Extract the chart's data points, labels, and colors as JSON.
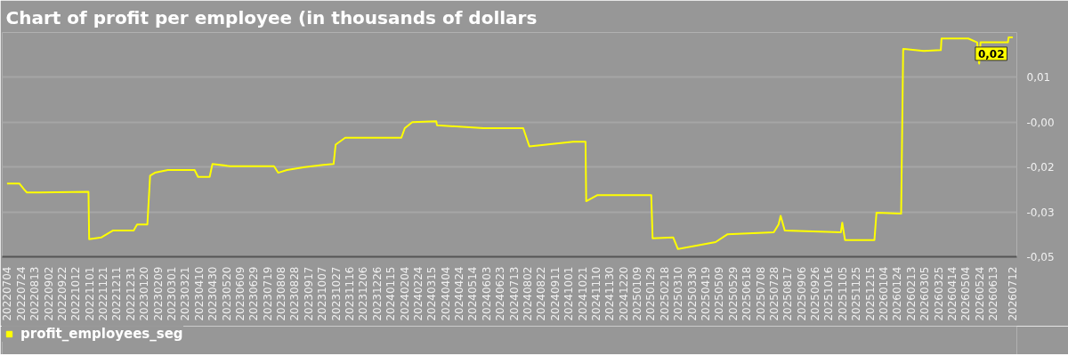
{
  "chart_data": {
    "type": "line",
    "title": "Chart of profit per employee (in thousands of dollars",
    "legend": "bottom left",
    "grid": "y",
    "xlim": [
      "2022-06-27",
      "2026-07-18"
    ],
    "xticks": [
      {
        "value": "2022-07-04",
        "label": "20220704"
      },
      {
        "value": "2022-07-24",
        "label": "20220724"
      },
      {
        "value": "2022-08-13",
        "label": "20220813"
      },
      {
        "value": "2022-09-02",
        "label": "20220902"
      },
      {
        "value": "2022-09-22",
        "label": "20220922"
      },
      {
        "value": "2022-10-12",
        "label": "20221012"
      },
      {
        "value": "2022-11-01",
        "label": "20221101"
      },
      {
        "value": "2022-11-21",
        "label": "20221121"
      },
      {
        "value": "2022-12-11",
        "label": "20221211"
      },
      {
        "value": "2022-12-31",
        "label": "20221231"
      },
      {
        "value": "2023-01-20",
        "label": "20230120"
      },
      {
        "value": "2023-02-09",
        "label": "20230209"
      },
      {
        "value": "2023-03-01",
        "label": "20230301"
      },
      {
        "value": "2023-03-21",
        "label": "20230321"
      },
      {
        "value": "2023-04-10",
        "label": "20230410"
      },
      {
        "value": "2023-04-30",
        "label": "20230430"
      },
      {
        "value": "2023-05-20",
        "label": "20230520"
      },
      {
        "value": "2023-06-09",
        "label": "20230609"
      },
      {
        "value": "2023-06-29",
        "label": "20230629"
      },
      {
        "value": "2023-07-19",
        "label": "20230719"
      },
      {
        "value": "2023-08-08",
        "label": "20230808"
      },
      {
        "value": "2023-08-28",
        "label": "20230828"
      },
      {
        "value": "2023-09-17",
        "label": "20230917"
      },
      {
        "value": "2023-10-07",
        "label": "20231007"
      },
      {
        "value": "2023-10-27",
        "label": "20231027"
      },
      {
        "value": "2023-11-16",
        "label": "20231116"
      },
      {
        "value": "2023-12-06",
        "label": "20231206"
      },
      {
        "value": "2023-12-26",
        "label": "20231226"
      },
      {
        "value": "2024-01-15",
        "label": "20240115"
      },
      {
        "value": "2024-02-04",
        "label": "20240204"
      },
      {
        "value": "2024-02-24",
        "label": "20240224"
      },
      {
        "value": "2024-03-15",
        "label": "20240315"
      },
      {
        "value": "2024-04-04",
        "label": "20240404"
      },
      {
        "value": "2024-04-24",
        "label": "20240424"
      },
      {
        "value": "2024-05-14",
        "label": "20240514"
      },
      {
        "value": "2024-06-03",
        "label": "20240603"
      },
      {
        "value": "2024-06-23",
        "label": "20240623"
      },
      {
        "value": "2024-07-13",
        "label": "20240713"
      },
      {
        "value": "2024-08-02",
        "label": "20240802"
      },
      {
        "value": "2024-08-22",
        "label": "20240822"
      },
      {
        "value": "2024-09-11",
        "label": "20240911"
      },
      {
        "value": "2024-10-01",
        "label": "20241001"
      },
      {
        "value": "2024-10-21",
        "label": "20241021"
      },
      {
        "value": "2024-11-10",
        "label": "20241110"
      },
      {
        "value": "2024-11-30",
        "label": "20241130"
      },
      {
        "value": "2024-12-20",
        "label": "20241220"
      },
      {
        "value": "2025-01-09",
        "label": "20250109"
      },
      {
        "value": "2025-01-29",
        "label": "20250129"
      },
      {
        "value": "2025-02-18",
        "label": "20250218"
      },
      {
        "value": "2025-03-10",
        "label": "20250310"
      },
      {
        "value": "2025-03-30",
        "label": "20250330"
      },
      {
        "value": "2025-04-19",
        "label": "20250419"
      },
      {
        "value": "2025-05-09",
        "label": "20250509"
      },
      {
        "value": "2025-05-29",
        "label": "20250529"
      },
      {
        "value": "2025-06-18",
        "label": "20250618"
      },
      {
        "value": "2025-07-08",
        "label": "20250708"
      },
      {
        "value": "2025-07-28",
        "label": "20250728"
      },
      {
        "value": "2025-08-17",
        "label": "20250817"
      },
      {
        "value": "2025-09-06",
        "label": "20250906"
      },
      {
        "value": "2025-09-26",
        "label": "20250926"
      },
      {
        "value": "2025-10-16",
        "label": "20251016"
      },
      {
        "value": "2025-11-05",
        "label": "20251105"
      },
      {
        "value": "2025-11-25",
        "label": "20251125"
      },
      {
        "value": "2025-12-15",
        "label": "20251215"
      },
      {
        "value": "2026-01-04",
        "label": "20260104"
      },
      {
        "value": "2026-01-24",
        "label": "20260124"
      },
      {
        "value": "2026-02-13",
        "label": "20260213"
      },
      {
        "value": "2026-03-05",
        "label": "20260305"
      },
      {
        "value": "2026-03-25",
        "label": "20260325"
      },
      {
        "value": "2026-04-14",
        "label": "20260414"
      },
      {
        "value": "2026-05-04",
        "label": "20260504"
      },
      {
        "value": "2026-05-24",
        "label": "20260524"
      },
      {
        "value": "2026-06-13",
        "label": "20260613"
      },
      {
        "value": "2026-07-12",
        "label": "20260712"
      }
    ],
    "ylim": [
      -0.05,
      0.025
    ],
    "yticks": [
      {
        "value": 0.01,
        "label": "0,01"
      },
      {
        "value": -0.005,
        "label": "-0,00"
      },
      {
        "value": -0.02,
        "label": "-0,02"
      },
      {
        "value": -0.035,
        "label": "-0,03"
      },
      {
        "value": -0.05,
        "label": "-0,05"
      }
    ],
    "annotations": [
      {
        "text": "0,02",
        "x": "2026-07-12",
        "y": 0.0234
      }
    ],
    "series": [
      {
        "name": "profit_employees_seg",
        "color": "#ffff00",
        "x": [
          "2022-07-04",
          "2022-07-22",
          "2022-07-29",
          "2022-08-02",
          "2022-08-21",
          "2022-10-31",
          "2022-11-01",
          "2022-11-19",
          "2022-12-06",
          "2023-01-05",
          "2023-01-10",
          "2023-01-25",
          "2023-01-29",
          "2023-02-05",
          "2023-02-24",
          "2023-04-04",
          "2023-04-09",
          "2023-04-26",
          "2023-04-30",
          "2023-05-26",
          "2023-07-29",
          "2023-08-04",
          "2023-08-17",
          "2023-09-12",
          "2023-10-09",
          "2023-10-24",
          "2023-10-27",
          "2023-11-10",
          "2024-01-31",
          "2024-02-05",
          "2024-02-16",
          "2024-03-22",
          "2024-03-23",
          "2024-05-30",
          "2024-07-27",
          "2024-08-05",
          "2024-10-08",
          "2024-10-26",
          "2024-10-27",
          "2024-11-12",
          "2025-01-30",
          "2025-02-01",
          "2025-03-03",
          "2025-03-10",
          "2025-05-04",
          "2025-05-21",
          "2025-07-28",
          "2025-08-04",
          "2025-08-07",
          "2025-08-13",
          "2025-11-03",
          "2025-11-05",
          "2025-11-09",
          "2025-12-22",
          "2025-12-25",
          "2026-01-30",
          "2026-02-02",
          "2026-03-04",
          "2026-03-29",
          "2026-03-30",
          "2026-05-08",
          "2026-05-21",
          "2026-05-24",
          "2026-05-26",
          "2026-07-05",
          "2026-07-06",
          "2026-07-12"
        ],
        "values": [
          -0.0255,
          -0.0255,
          -0.0275,
          -0.0285,
          -0.0285,
          -0.0283,
          -0.0441,
          -0.0435,
          -0.0412,
          -0.0412,
          -0.0392,
          -0.0392,
          -0.0229,
          -0.0219,
          -0.021,
          -0.021,
          -0.0233,
          -0.0233,
          -0.019,
          -0.0197,
          -0.0197,
          -0.0219,
          -0.021,
          -0.02,
          -0.0193,
          -0.019,
          -0.0125,
          -0.0102,
          -0.0102,
          -0.007,
          -0.005,
          -0.0047,
          -0.006,
          -0.007,
          -0.007,
          -0.0131,
          -0.0115,
          -0.0115,
          -0.0314,
          -0.0294,
          -0.0294,
          -0.0438,
          -0.0435,
          -0.0474,
          -0.0451,
          -0.0425,
          -0.0418,
          -0.0392,
          -0.0363,
          -0.0412,
          -0.0418,
          -0.0386,
          -0.0444,
          -0.0444,
          -0.0353,
          -0.0356,
          0.0195,
          0.0188,
          0.0191,
          0.023,
          0.023,
          0.0217,
          0.0146,
          0.0217,
          0.0217,
          0.0234,
          0.0234
        ]
      }
    ]
  }
}
